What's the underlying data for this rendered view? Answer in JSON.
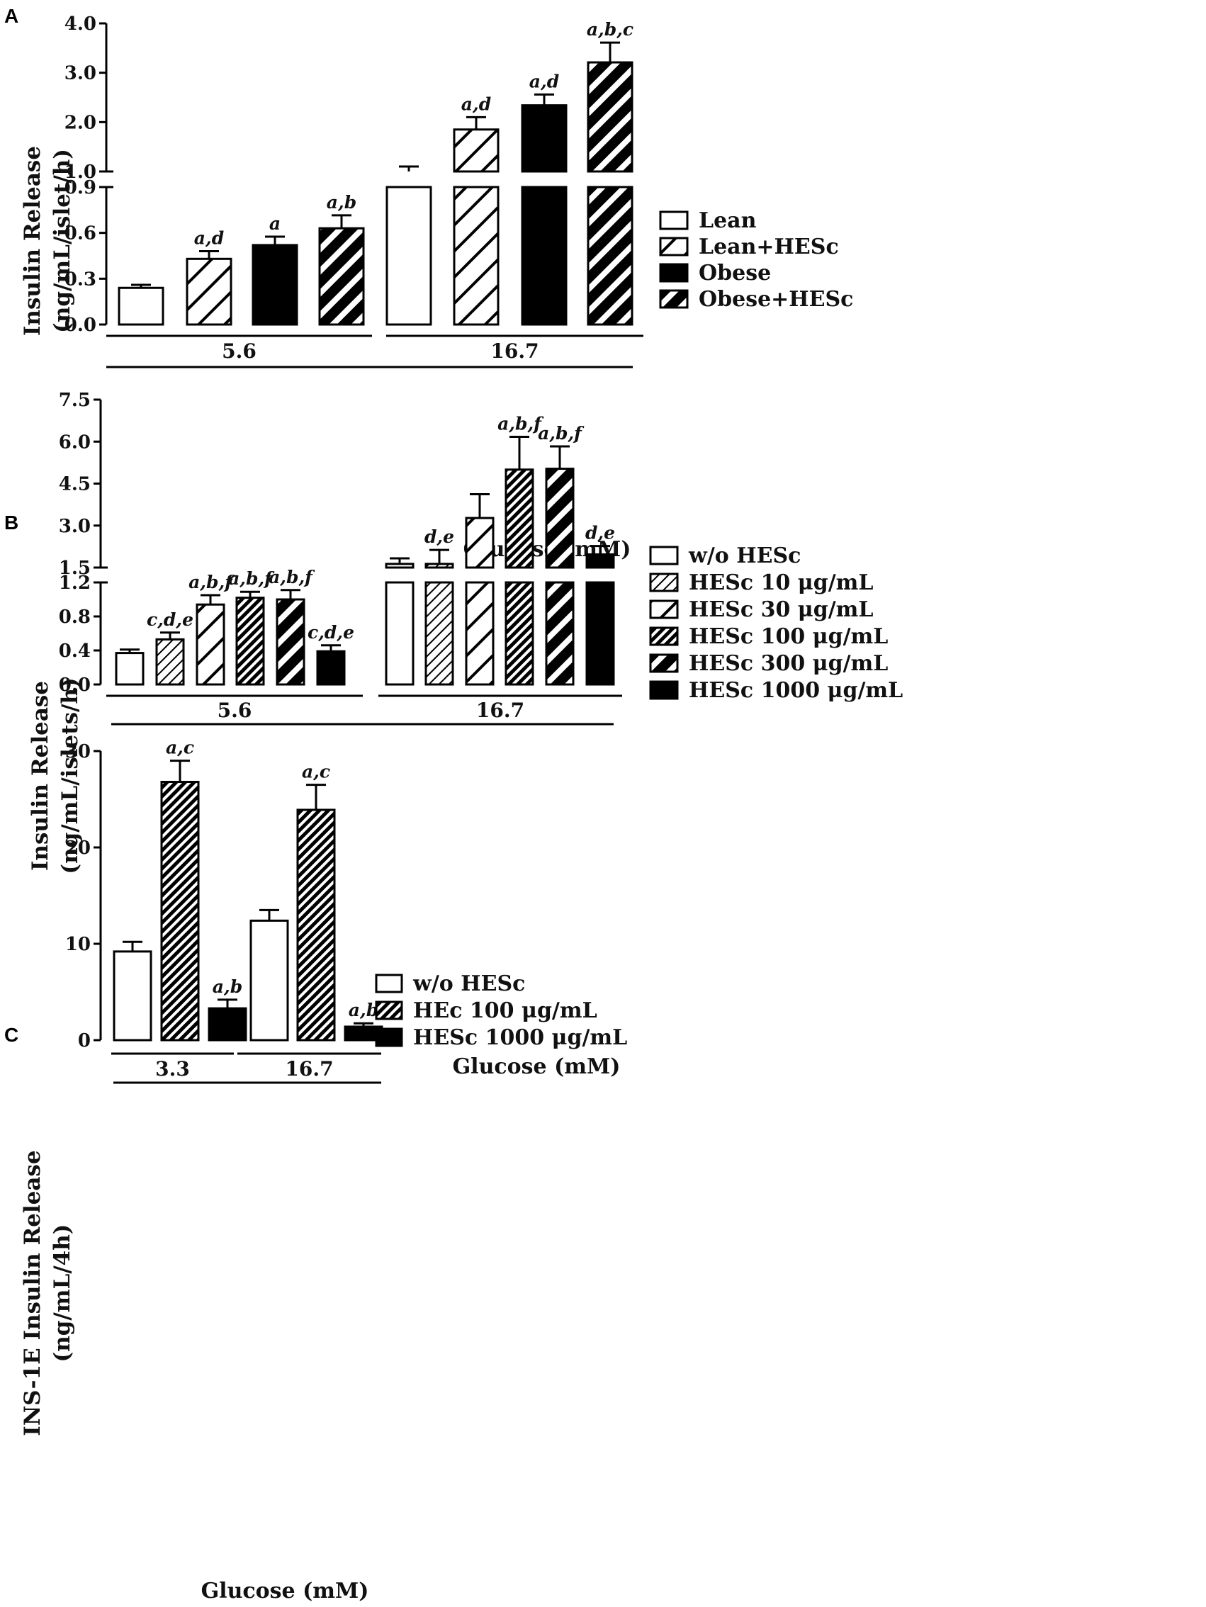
{
  "chart_data": [
    {
      "panel": "A",
      "type": "bar",
      "ylabel": [
        "Insulin Release",
        "(ng/mL/islet/h)"
      ],
      "xlabel": "Glucose (mM)",
      "categories": [
        "5.6",
        "16.7"
      ],
      "axis_break": {
        "lower": [
          0,
          0.9
        ],
        "upper": [
          1.0,
          4.0
        ]
      },
      "yticks_lower": [
        "0.0",
        "0.3",
        "0.6",
        "0.9"
      ],
      "yticks_upper": [
        "1.0",
        "2.0",
        "3.0",
        "4.0"
      ],
      "legend": [
        "Lean",
        "Lean+HESc",
        "Obese",
        "Obese+HESc"
      ],
      "series": [
        {
          "name": "Lean",
          "fill": "white",
          "values": [
            0.24,
            0.98
          ],
          "errors": [
            0.02,
            0.12
          ],
          "sig": [
            "",
            ""
          ]
        },
        {
          "name": "Lean+HESc",
          "fill": "hatch",
          "values": [
            0.43,
            1.85
          ],
          "errors": [
            0.05,
            0.25
          ],
          "sig": [
            "a,d",
            "a,d"
          ]
        },
        {
          "name": "Obese",
          "fill": "black",
          "values": [
            0.52,
            2.34
          ],
          "errors": [
            0.055,
            0.22
          ],
          "sig": [
            "a",
            "a,d"
          ]
        },
        {
          "name": "Obese+HESc",
          "fill": "hatch-dark",
          "values": [
            0.63,
            3.21
          ],
          "errors": [
            0.085,
            0.4
          ],
          "sig": [
            "a,b",
            "a,b,c"
          ]
        }
      ]
    },
    {
      "panel": "B",
      "type": "bar",
      "ylabel": [
        "Insulin Release",
        "(ng/mL/islets/h)"
      ],
      "xlabel": "Glucose (mM)",
      "categories": [
        "5.6",
        "16.7"
      ],
      "axis_break": {
        "lower": [
          0,
          1.2
        ],
        "upper": [
          1.5,
          7.5
        ]
      },
      "yticks_lower": [
        "0.0",
        "0.4",
        "0.8",
        "1.2"
      ],
      "yticks_upper": [
        "1.5",
        "3.0",
        "4.5",
        "6.0",
        "7.5"
      ],
      "legend": [
        "w/o HESc",
        "HESc 10 μg/mL",
        "HESc 30 μg/mL",
        "HESc 100 μg/mL",
        "HESc 300 μg/mL",
        "HESc 1000 μg/mL"
      ],
      "series": [
        {
          "name": "w/o HESc",
          "fill": "white",
          "values": [
            0.37,
            1.63
          ],
          "errors": [
            0.04,
            0.2
          ],
          "sig": [
            "",
            ""
          ]
        },
        {
          "name": "HESc 10 μg/mL",
          "fill": "hatch-light",
          "values": [
            0.53,
            1.63
          ],
          "errors": [
            0.08,
            0.5
          ],
          "sig": [
            "c,d,e",
            "d,e"
          ]
        },
        {
          "name": "HESc 30 μg/mL",
          "fill": "hatch",
          "values": [
            0.94,
            3.27
          ],
          "errors": [
            0.11,
            0.85
          ],
          "sig": [
            "a,b,f",
            ""
          ]
        },
        {
          "name": "HESc 100 μg/mL",
          "fill": "hatch-dense",
          "values": [
            1.02,
            5.0
          ],
          "errors": [
            0.07,
            1.17
          ],
          "sig": [
            "a,b,f",
            "a,b,f"
          ]
        },
        {
          "name": "HESc 300 μg/mL",
          "fill": "hatch-dark",
          "values": [
            1.0,
            5.03
          ],
          "errors": [
            0.11,
            0.8
          ],
          "sig": [
            "a,b,f",
            "a,b,f"
          ]
        },
        {
          "name": "HESc 1000 μg/mL",
          "fill": "black",
          "values": [
            0.39,
            1.97
          ],
          "errors": [
            0.07,
            0.3
          ],
          "sig": [
            "c,d,e",
            "d,e"
          ]
        }
      ]
    },
    {
      "panel": "C",
      "type": "bar",
      "ylabel": [
        "INS-1E Insulin Release",
        "(ng/mL/4h)"
      ],
      "xlabel": "Glucose (mM)",
      "categories": [
        "3.3",
        "16.7"
      ],
      "ylim": [
        0,
        30
      ],
      "yticks": [
        "0",
        "10",
        "20",
        "30"
      ],
      "legend": [
        "w/o HESc",
        "HEc 100 μg/mL",
        "HESc 1000 μg/mL"
      ],
      "series": [
        {
          "name": "w/o HESc",
          "fill": "white",
          "values": [
            9.2,
            12.4
          ],
          "errors": [
            1.0,
            1.1
          ],
          "sig": [
            "",
            ""
          ]
        },
        {
          "name": "HEc 100 μg/mL",
          "fill": "hatch-dense",
          "values": [
            26.8,
            23.9
          ],
          "errors": [
            2.2,
            2.6
          ],
          "sig": [
            "a,c",
            "a,c"
          ]
        },
        {
          "name": "HESc 1000 μg/mL",
          "fill": "black",
          "values": [
            3.3,
            1.4
          ],
          "errors": [
            0.9,
            0.35
          ],
          "sig": [
            "a,b",
            "a,b"
          ]
        }
      ]
    }
  ]
}
